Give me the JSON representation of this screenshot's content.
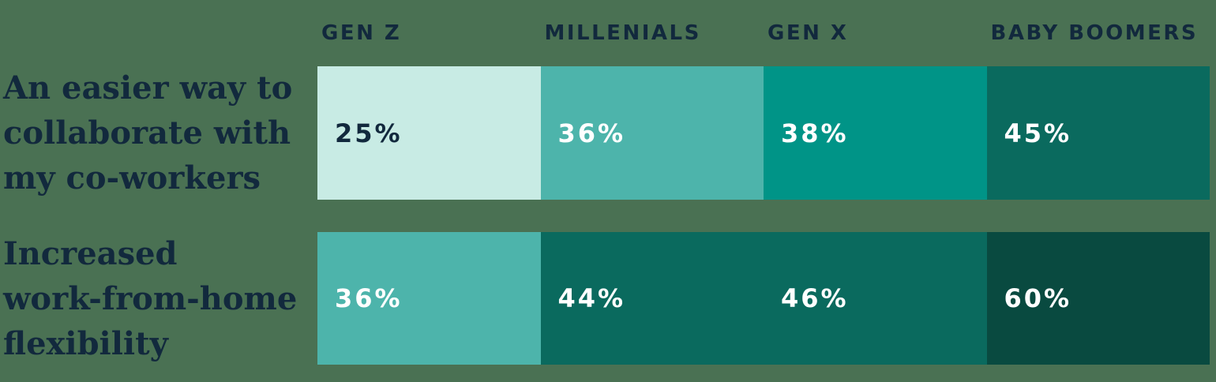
{
  "palette": {
    "background": "#4a7153",
    "dark_navy_text": "#12293d",
    "white_text": "#ffffff",
    "cell_mint": "#c8ebe4",
    "cell_teal": "#4db4ab",
    "cell_teal_green": "#009487",
    "cell_dark_green": "#0a6a5e",
    "cell_darkest_green": "#094a40"
  },
  "chart_data": {
    "type": "heatmap",
    "title": "",
    "legend_position": "none",
    "grid": false,
    "categories": [
      "GEN Z",
      "MILLENIALS",
      "GEN X",
      "BABY BOOMERS"
    ],
    "rows": [
      {
        "label": "An easier way to collaborate with my co-workers",
        "label_lines": [
          "An easier way to",
          "collaborate with",
          "my co-workers"
        ],
        "values": [
          25,
          36,
          38,
          45
        ],
        "value_labels": [
          "25%",
          "36%",
          "38%",
          "45%"
        ],
        "cell_colors": [
          "#c8ebe4",
          "#4db4ab",
          "#009487",
          "#0a6a5e"
        ],
        "text_colors": [
          "#12293d",
          "#ffffff",
          "#ffffff",
          "#ffffff"
        ]
      },
      {
        "label": "Increased work-from-home flexibility",
        "label_lines": [
          "Increased",
          "work-from-home",
          "flexibility"
        ],
        "values": [
          36,
          44,
          46,
          60
        ],
        "value_labels": [
          "36%",
          "44%",
          "46%",
          "60%"
        ],
        "cell_colors": [
          "#4db4ab",
          "#0a6a5e",
          "#0a6a5e",
          "#094a40"
        ],
        "text_colors": [
          "#ffffff",
          "#ffffff",
          "#ffffff",
          "#ffffff"
        ]
      }
    ]
  }
}
